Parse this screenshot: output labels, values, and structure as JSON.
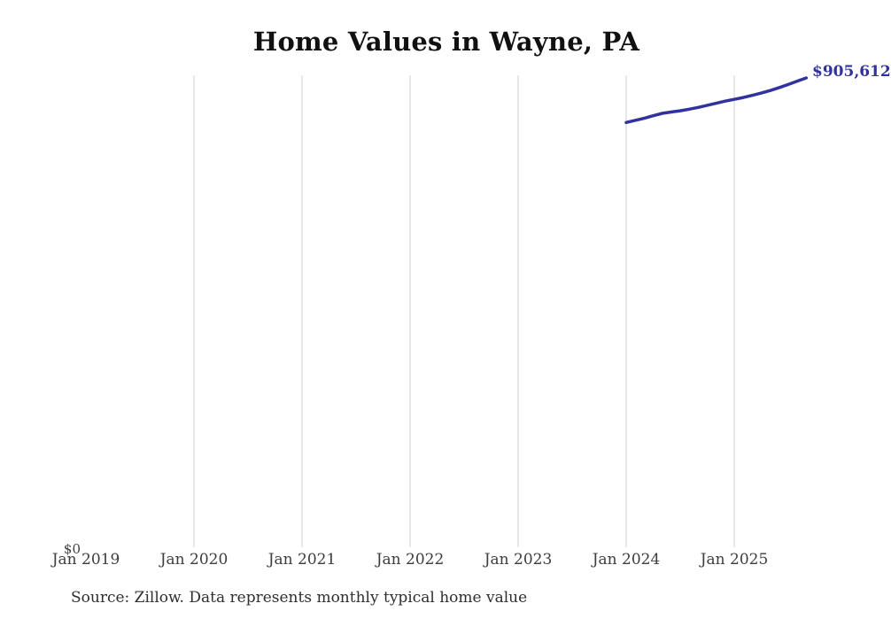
{
  "title": "Home Values in Wayne, PA",
  "source_note": "Source: Zillow. Data represents monthly typical home value",
  "y_axis": {
    "zero_label": "$0"
  },
  "latest_value_label": "$905,612",
  "colors": {
    "line": "#32329c",
    "value_label": "#32329c",
    "gridline": "#d2d2d2",
    "axis_text": "#3d3d3d",
    "title_text": "#111111",
    "source_text": "#2e2e2e",
    "background": "#ffffff"
  },
  "chart_data": {
    "type": "line",
    "title": "Home Values in Wayne, PA",
    "xlabel": "",
    "ylabel": "",
    "x_tick_labels": [
      "Jan 2019",
      "Jan 2020",
      "Jan 2021",
      "Jan 2022",
      "Jan 2023",
      "Jan 2024",
      "Jan 2025"
    ],
    "x_axis_range": [
      "Jan 2019",
      "Sep 2025"
    ],
    "ylim": [
      0,
      911000
    ],
    "grid": "vertical-only",
    "legend": "none",
    "annotation": {
      "text": "$905,612",
      "position": "line-end"
    },
    "series": [
      {
        "name": "Typical home value",
        "x": [
          "2024-01",
          "2024-02",
          "2024-03",
          "2024-04",
          "2024-05",
          "2024-06",
          "2024-07",
          "2024-08",
          "2024-09",
          "2024-10",
          "2024-11",
          "2024-12",
          "2025-01",
          "2025-02",
          "2025-03",
          "2025-04",
          "2025-05",
          "2025-06",
          "2025-07",
          "2025-08",
          "2025-09"
        ],
        "values": [
          820000,
          824000,
          828000,
          833000,
          837500,
          840000,
          842500,
          845500,
          849000,
          853000,
          857000,
          861000,
          864500,
          868000,
          872000,
          876500,
          881500,
          887000,
          893000,
          899500,
          905612
        ]
      }
    ]
  }
}
